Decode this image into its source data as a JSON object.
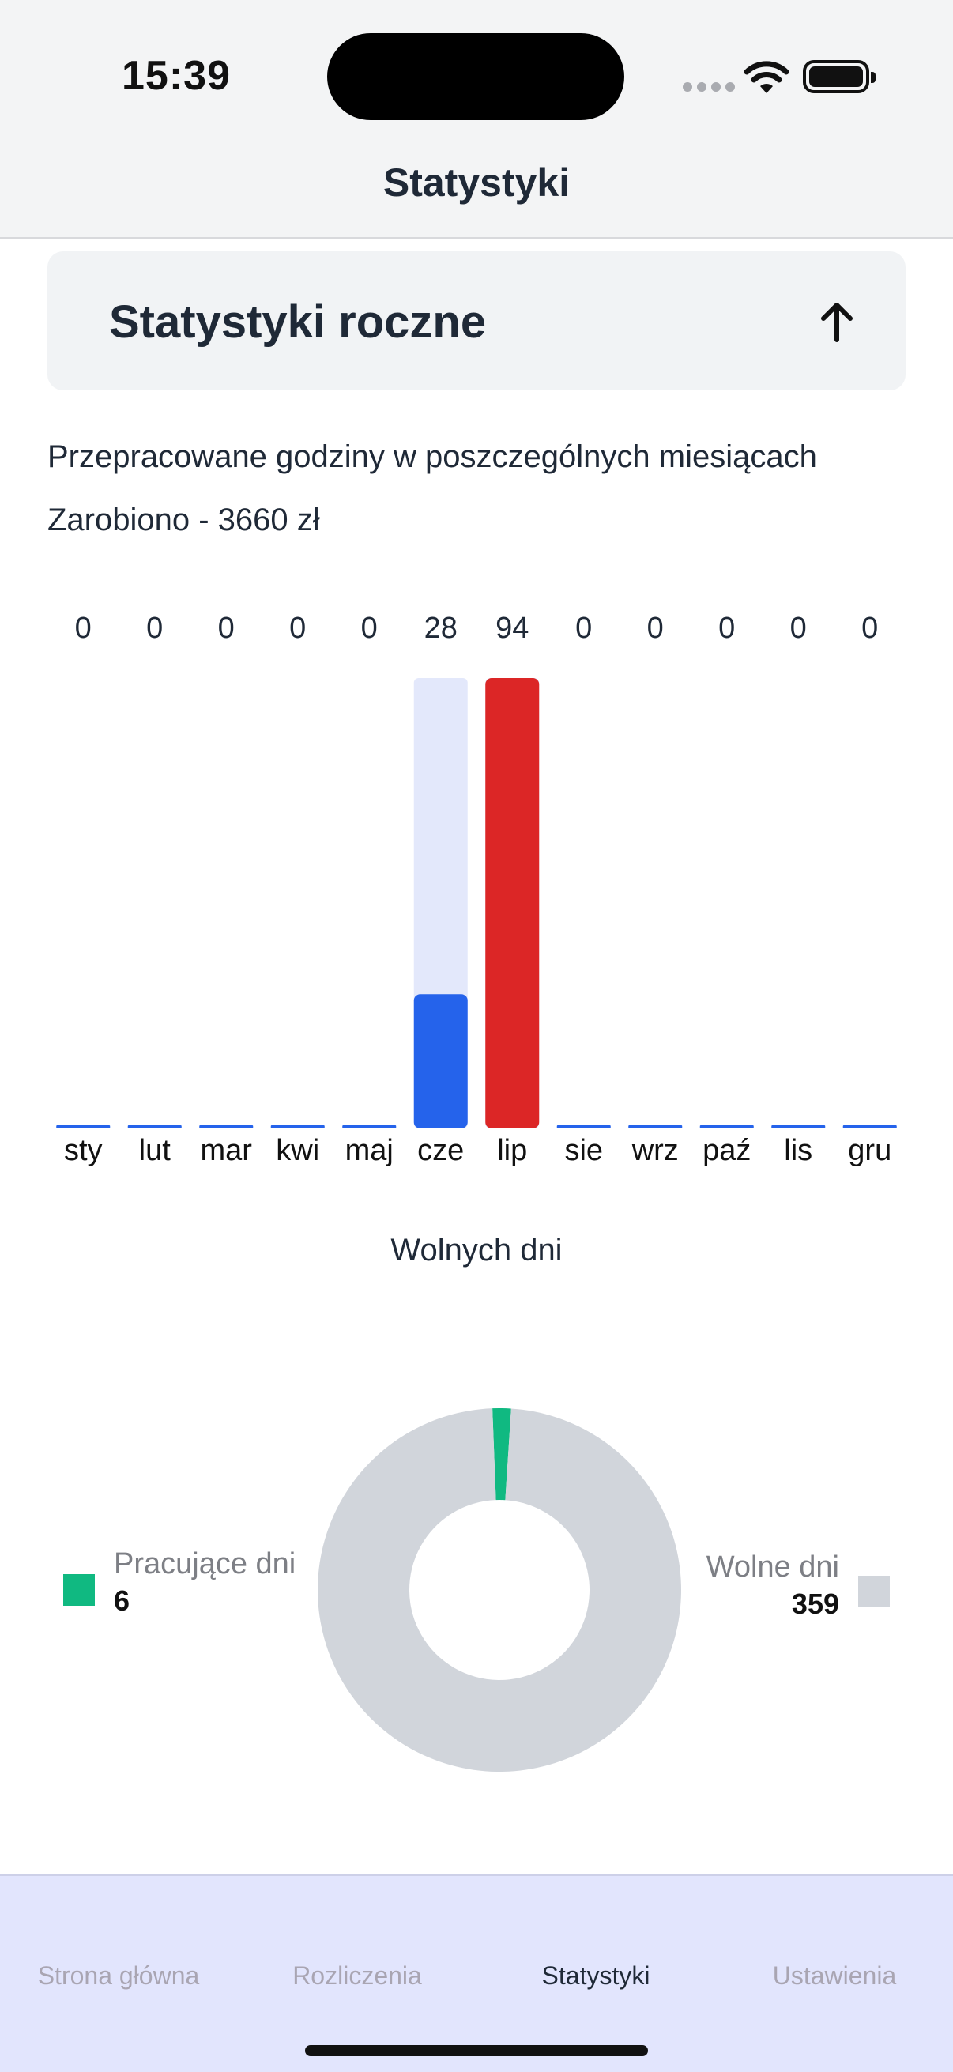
{
  "status_bar": {
    "time": "15:39"
  },
  "header": {
    "title": "Statystyki"
  },
  "accordion": {
    "title": "Statystyki roczne"
  },
  "summary": {
    "hours_label": "Przepracowane godziny w poszczególnych miesiącach",
    "earned_label": "Zarobiono - 3660 zł"
  },
  "colors": {
    "bar_primary": "#2563eb",
    "bar_highlight": "#dc2626",
    "bar_track": "#e3e8fb",
    "donut_work": "#10b981",
    "donut_free": "#d1d5db"
  },
  "chart_data": [
    {
      "type": "bar",
      "categories": [
        "sty",
        "lut",
        "mar",
        "kwi",
        "maj",
        "cze",
        "lip",
        "sie",
        "wrz",
        "paź",
        "lis",
        "gru"
      ],
      "values": [
        0,
        0,
        0,
        0,
        0,
        28,
        94,
        0,
        0,
        0,
        0,
        0
      ],
      "ylim": [
        0,
        94
      ],
      "highlight_index": 6,
      "title": "",
      "xlabel": "",
      "ylabel": "",
      "grid": false
    },
    {
      "type": "pie",
      "title": "Wolnych dni",
      "slices": [
        {
          "label": "Pracujące dni",
          "value": 6,
          "color": "#10b981"
        },
        {
          "label": "Wolne dni",
          "value": 359,
          "color": "#d1d5db"
        }
      ],
      "donut": true
    }
  ],
  "legend": {
    "work": {
      "label": "Pracujące dni",
      "value": "6"
    },
    "free": {
      "label": "Wolne dni",
      "value": "359"
    }
  },
  "nav": {
    "items": [
      {
        "label": "Strona główna",
        "active": false
      },
      {
        "label": "Rozliczenia",
        "active": false
      },
      {
        "label": "Statystyki",
        "active": true
      },
      {
        "label": "Ustawienia",
        "active": false
      }
    ]
  },
  "icons": {
    "accordion_toggle": "arrow-up-icon",
    "wifi": "wifi-icon",
    "battery": "battery-icon",
    "signal": "signal-icon"
  }
}
